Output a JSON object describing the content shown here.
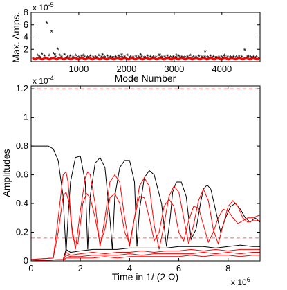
{
  "chart_data": [
    {
      "type": "scatter",
      "xlabel": "Mode Number",
      "ylabel": "Max. Amps.",
      "exponent": "x 10",
      "exponent_power": "-5",
      "xlim": [
        1,
        4800
      ],
      "ylim": [
        0,
        8
      ],
      "xticks": [
        1000,
        2000,
        3000,
        4000
      ],
      "yticks": [
        2,
        4,
        6,
        8
      ],
      "grid": false,
      "series": [
        {
          "color": "#ff0000",
          "marker": "*",
          "x": [
            140,
            180,
            230,
            280,
            330,
            380,
            430,
            470,
            510,
            560,
            600,
            640,
            700,
            760,
            820,
            880,
            940,
            1000,
            1060,
            1120,
            1180,
            1240,
            1300,
            1360,
            1420,
            1480,
            1540,
            1600,
            1660,
            1720,
            1780,
            1840,
            1900,
            1960,
            2020,
            2080,
            2140,
            2200,
            2260,
            2320,
            2380,
            2440,
            2500,
            2560,
            2620,
            2680,
            2740,
            2800,
            2860,
            2920,
            2980,
            3040,
            3100,
            3160,
            3220,
            3280,
            3340,
            3400,
            3460,
            3520,
            3580,
            3640,
            3700,
            3760,
            3820,
            3880,
            3940,
            4000,
            4060,
            4120,
            4180,
            4240,
            4300,
            4360,
            4420,
            4480,
            4540,
            4600,
            4660,
            4720
          ],
          "y": [
            0.9,
            0.6,
            1.1,
            0.8,
            6.2,
            0.9,
            4.8,
            1.2,
            0.7,
            1.9,
            0.9,
            0.7,
            1.0,
            0.6,
            0.8,
            0.7,
            0.9,
            0.6,
            0.8,
            0.7,
            0.6,
            0.8,
            0.7,
            0.6,
            0.9,
            0.7,
            0.6,
            0.8,
            0.7,
            0.6,
            0.7,
            0.8,
            0.6,
            0.7,
            0.9,
            0.6,
            0.7,
            0.8,
            0.6,
            0.7,
            0.6,
            0.8,
            0.7,
            0.6,
            0.7,
            0.9,
            0.6,
            0.7,
            0.8,
            0.6,
            0.7,
            0.6,
            0.8,
            0.7,
            0.6,
            0.7,
            0.9,
            0.6,
            0.7,
            0.8,
            0.6,
            0.7,
            0.6,
            0.8,
            0.7,
            0.6,
            0.7,
            0.6,
            0.8,
            0.7,
            0.6,
            0.7,
            0.6,
            0.8,
            0.7,
            1.8,
            0.7,
            0.6,
            0.7,
            0.6
          ]
        },
        {
          "color": "#000000",
          "marker": "*",
          "x": [
            500,
            1100,
            1500,
            1900,
            2300,
            2700,
            3050,
            3650,
            4050,
            4550
          ],
          "y": [
            1.1,
            0.9,
            1.0,
            1.0,
            1.0,
            1.0,
            0.9,
            1.6,
            0.9,
            0.8
          ]
        }
      ]
    },
    {
      "type": "line",
      "xlabel": "Time in 1/ (2 Ω)",
      "ylabel": "Amplitudes",
      "y_exponent": "x 10",
      "y_exponent_power": "-4",
      "x_exponent": "x 10",
      "x_exponent_power": "6",
      "xlim": [
        0,
        9.3
      ],
      "ylim": [
        0,
        1.22
      ],
      "xticks": [
        0,
        2,
        4,
        6,
        8
      ],
      "yticks": [
        0,
        0.2,
        0.4,
        0.6,
        0.8,
        1,
        1.2
      ],
      "grid": false,
      "reference_lines": [
        {
          "y": 1.2,
          "color": "#ff6060",
          "style": "dashed"
        },
        {
          "y": 0.16,
          "color": "#ff6060",
          "style": "dashed"
        }
      ],
      "series": [
        {
          "color": "#000000",
          "x": [
            0,
            0.7,
            0.9,
            1.1,
            1.3,
            1.42,
            1.5,
            1.6,
            1.8,
            2.0,
            2.2,
            2.3,
            2.4,
            2.6,
            2.8,
            3.0,
            3.2,
            3.3,
            3.4,
            3.6,
            3.8,
            4.0,
            4.2,
            4.3,
            4.4,
            4.6,
            4.8,
            5.0,
            5.3,
            5.5,
            5.65,
            5.75,
            5.9,
            6.1,
            6.3,
            6.5,
            6.7,
            6.9,
            7.0,
            7.15,
            7.3,
            7.5,
            7.7,
            7.9,
            8.1,
            8.3,
            8.5,
            8.7,
            8.9,
            9.1,
            9.3
          ],
          "y": [
            0.8,
            0.8,
            0.78,
            0.7,
            0.45,
            0.05,
            0.3,
            0.55,
            0.72,
            0.73,
            0.55,
            0.08,
            0.45,
            0.68,
            0.72,
            0.65,
            0.3,
            0.08,
            0.45,
            0.65,
            0.7,
            0.7,
            0.55,
            0.1,
            0.35,
            0.58,
            0.63,
            0.6,
            0.4,
            0.1,
            0.3,
            0.48,
            0.55,
            0.55,
            0.45,
            0.15,
            0.22,
            0.42,
            0.5,
            0.53,
            0.5,
            0.35,
            0.2,
            0.3,
            0.38,
            0.4,
            0.36,
            0.3,
            0.27,
            0.3,
            0.27
          ]
        },
        {
          "color": "#ff0000",
          "x": [
            0,
            0.9,
            1.1,
            1.3,
            1.42,
            1.5,
            1.65,
            1.8,
            2.0,
            2.2,
            2.3,
            2.4,
            2.6,
            2.8,
            3.0,
            3.2,
            3.4,
            3.6,
            3.8,
            4.0,
            4.2,
            4.4,
            4.6,
            4.8,
            5.0,
            5.2,
            5.4,
            5.6,
            5.8,
            6.0,
            6.2,
            6.4,
            6.6,
            6.8,
            7.0,
            7.2,
            7.4,
            7.6,
            7.8,
            8.0,
            8.2,
            8.4,
            8.6,
            8.8,
            9.0,
            9.3
          ],
          "y": [
            0.01,
            0.02,
            0.3,
            0.6,
            0.62,
            0.55,
            0.25,
            0.08,
            0.35,
            0.58,
            0.62,
            0.6,
            0.4,
            0.1,
            0.3,
            0.55,
            0.6,
            0.55,
            0.3,
            0.1,
            0.3,
            0.52,
            0.58,
            0.52,
            0.25,
            0.08,
            0.25,
            0.45,
            0.52,
            0.48,
            0.3,
            0.12,
            0.25,
            0.42,
            0.5,
            0.42,
            0.22,
            0.12,
            0.25,
            0.38,
            0.42,
            0.38,
            0.3,
            0.27,
            0.28,
            0.28
          ]
        },
        {
          "color": "#ff0000",
          "x": [
            0,
            0.9,
            1.1,
            1.3,
            1.42,
            1.55,
            1.7,
            1.9,
            2.1,
            2.25,
            2.4,
            2.6,
            2.8,
            3.0,
            3.2,
            3.4,
            3.6,
            3.8,
            4.0,
            4.2,
            4.4,
            4.6,
            4.8,
            5.0,
            5.2,
            5.4,
            5.6,
            5.8,
            6.0,
            6.2,
            6.4,
            6.6,
            6.8,
            7.0,
            7.2,
            7.4,
            7.6,
            7.8,
            8.0,
            8.2,
            8.4,
            8.6,
            8.8,
            9.0,
            9.3
          ],
          "y": [
            0.01,
            0.02,
            0.2,
            0.45,
            0.48,
            0.4,
            0.15,
            0.12,
            0.4,
            0.47,
            0.44,
            0.3,
            0.12,
            0.22,
            0.44,
            0.47,
            0.4,
            0.2,
            0.12,
            0.3,
            0.45,
            0.44,
            0.3,
            0.14,
            0.2,
            0.38,
            0.43,
            0.38,
            0.2,
            0.14,
            0.28,
            0.38,
            0.37,
            0.25,
            0.13,
            0.2,
            0.3,
            0.36,
            0.35,
            0.3,
            0.26,
            0.28,
            0.3,
            0.3,
            0.32
          ]
        },
        {
          "color": "#000000",
          "x": [
            0,
            1.3,
            1.42,
            1.6,
            2.0,
            2.5,
            3.0,
            3.5,
            4.0,
            4.5,
            5.0,
            5.5,
            6.0,
            6.5,
            7.0,
            7.5,
            8.0,
            8.5,
            9.0,
            9.3
          ],
          "y": [
            0.0,
            0.01,
            0.08,
            0.06,
            0.07,
            0.08,
            0.08,
            0.08,
            0.09,
            0.09,
            0.09,
            0.09,
            0.1,
            0.1,
            0.1,
            0.09,
            0.1,
            0.11,
            0.1,
            0.1
          ]
        },
        {
          "color": "#ff0000",
          "x": [
            0,
            1.3,
            1.42,
            1.6,
            2.0,
            2.5,
            3.0,
            3.5,
            4.0,
            4.5,
            5.0,
            5.5,
            6.0,
            6.5,
            7.0,
            7.5,
            8.0,
            8.5,
            9.0,
            9.3
          ],
          "y": [
            0.0,
            0.01,
            0.06,
            0.04,
            0.05,
            0.06,
            0.05,
            0.06,
            0.06,
            0.07,
            0.06,
            0.07,
            0.07,
            0.08,
            0.07,
            0.08,
            0.07,
            0.08,
            0.08,
            0.08
          ]
        },
        {
          "color": "#ff0000",
          "x": [
            0,
            1.3,
            1.42,
            1.6,
            2.0,
            2.5,
            3.0,
            3.5,
            4.0,
            4.5,
            5.0,
            5.5,
            6.0,
            6.5,
            7.0,
            7.5,
            8.0,
            8.5,
            9.0,
            9.3
          ],
          "y": [
            0.0,
            0.0,
            0.04,
            0.03,
            0.03,
            0.04,
            0.04,
            0.04,
            0.05,
            0.04,
            0.05,
            0.05,
            0.05,
            0.05,
            0.06,
            0.05,
            0.06,
            0.05,
            0.06,
            0.06
          ]
        },
        {
          "color": "#ff0000",
          "x": [
            0,
            1.3,
            1.42,
            1.6,
            2.0,
            2.5,
            3.0,
            3.5,
            4.0,
            4.5,
            5.0,
            5.5,
            6.0,
            6.5,
            7.0,
            7.5,
            8.0,
            8.5,
            9.0,
            9.3
          ],
          "y": [
            0.0,
            0.0,
            0.02,
            0.02,
            0.02,
            0.02,
            0.03,
            0.02,
            0.03,
            0.03,
            0.03,
            0.03,
            0.03,
            0.04,
            0.03,
            0.04,
            0.04,
            0.03,
            0.04,
            0.04
          ]
        }
      ]
    }
  ]
}
